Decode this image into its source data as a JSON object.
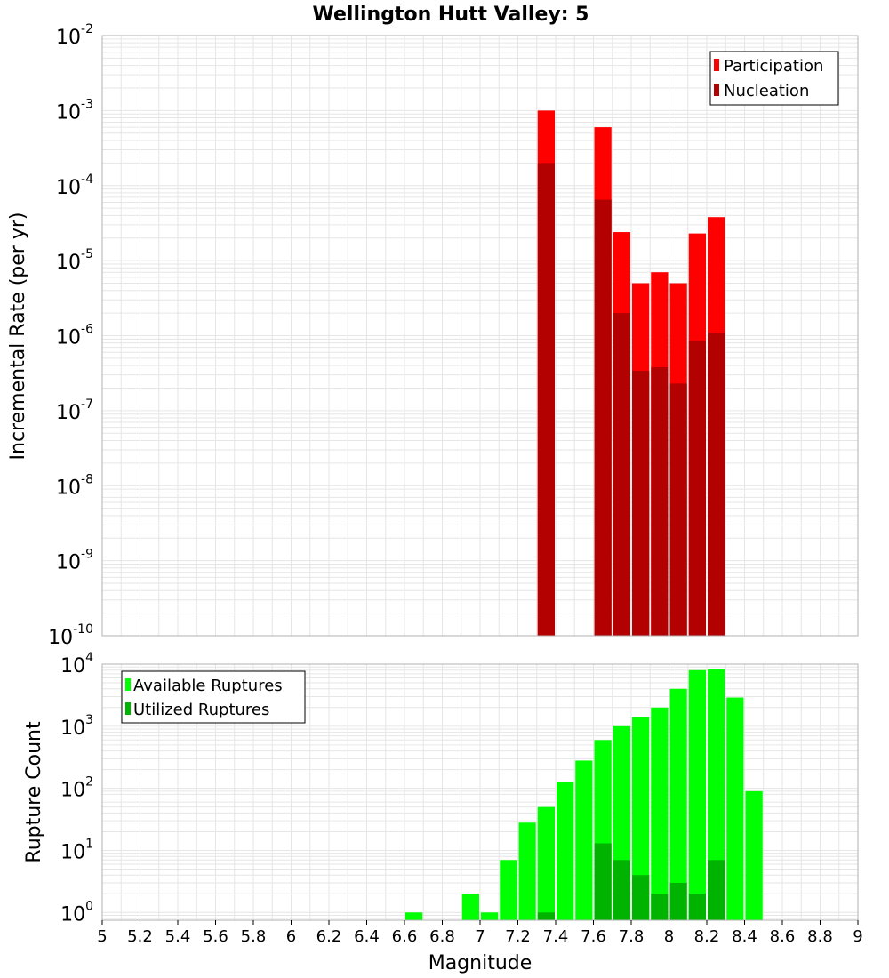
{
  "title": "Wellington Hutt Valley: 5",
  "colors": {
    "participation": "#ff0000",
    "nucleation": "#b30000",
    "available": "#00ff00",
    "utilized": "#00b300",
    "grid": "#e6e6e6",
    "frame": "#b0b0b0"
  },
  "chart_data": [
    {
      "type": "bar",
      "title": "Wellington Hutt Valley: 5",
      "ylabel": "Incremental Rate (per yr)",
      "xlabel": "",
      "xlim": [
        5,
        9
      ],
      "ylim": [
        1e-10,
        0.01
      ],
      "yscale": "log",
      "grid": true,
      "legend_position": "top-right",
      "bin_width": 0.1,
      "y_ticks": [
        {
          "base": "10",
          "exp": "-10"
        },
        {
          "base": "10",
          "exp": "-9"
        },
        {
          "base": "10",
          "exp": "-8"
        },
        {
          "base": "10",
          "exp": "-7"
        },
        {
          "base": "10",
          "exp": "-6"
        },
        {
          "base": "10",
          "exp": "-5"
        },
        {
          "base": "10",
          "exp": "-4"
        },
        {
          "base": "10",
          "exp": "-3"
        },
        {
          "base": "10",
          "exp": "-2"
        }
      ],
      "series": [
        {
          "name": "Participation",
          "x": [
            7.35,
            7.65,
            7.75,
            7.85,
            7.95,
            8.05,
            8.15,
            8.25
          ],
          "values": [
            0.001,
            0.0006,
            2.4e-05,
            5e-06,
            7e-06,
            5e-06,
            2.3e-05,
            3.8e-05
          ]
        },
        {
          "name": "Nucleation",
          "x": [
            7.35,
            7.65,
            7.75,
            7.85,
            7.95,
            8.05,
            8.15,
            8.25
          ],
          "values": [
            0.0002,
            6.5e-05,
            2e-06,
            3.4e-07,
            3.8e-07,
            2.3e-07,
            8.5e-07,
            1.1e-06
          ]
        }
      ]
    },
    {
      "type": "bar",
      "title": "",
      "ylabel": "Rupture Count",
      "xlabel": "Magnitude",
      "xlim": [
        5,
        9
      ],
      "ylim": [
        0.75,
        10000
      ],
      "yscale": "log",
      "grid": true,
      "legend_position": "top-left",
      "bin_width": 0.1,
      "x_ticks": [
        "5",
        "5.2",
        "5.4",
        "5.6",
        "5.8",
        "6",
        "6.2",
        "6.4",
        "6.6",
        "6.8",
        "7",
        "7.2",
        "7.4",
        "7.6",
        "7.8",
        "8",
        "8.2",
        "8.4",
        "8.6",
        "8.8",
        "9"
      ],
      "y_ticks": [
        {
          "base": "10",
          "exp": "0"
        },
        {
          "base": "10",
          "exp": "1"
        },
        {
          "base": "10",
          "exp": "2"
        },
        {
          "base": "10",
          "exp": "3"
        },
        {
          "base": "10",
          "exp": "4"
        }
      ],
      "series": [
        {
          "name": "Available Ruptures",
          "x": [
            6.65,
            6.95,
            7.05,
            7.15,
            7.25,
            7.35,
            7.45,
            7.55,
            7.65,
            7.75,
            7.85,
            7.95,
            8.05,
            8.15,
            8.25,
            8.35,
            8.45
          ],
          "values": [
            1,
            2,
            1,
            7,
            28,
            50,
            125,
            280,
            600,
            1000,
            1400,
            2000,
            4000,
            8000,
            8300,
            2900,
            90
          ]
        },
        {
          "name": "Utilized Ruptures",
          "x": [
            7.35,
            7.65,
            7.75,
            7.85,
            7.95,
            8.05,
            8.15,
            8.25
          ],
          "values": [
            1,
            13,
            7,
            4,
            2,
            3,
            2,
            7
          ]
        }
      ]
    }
  ]
}
